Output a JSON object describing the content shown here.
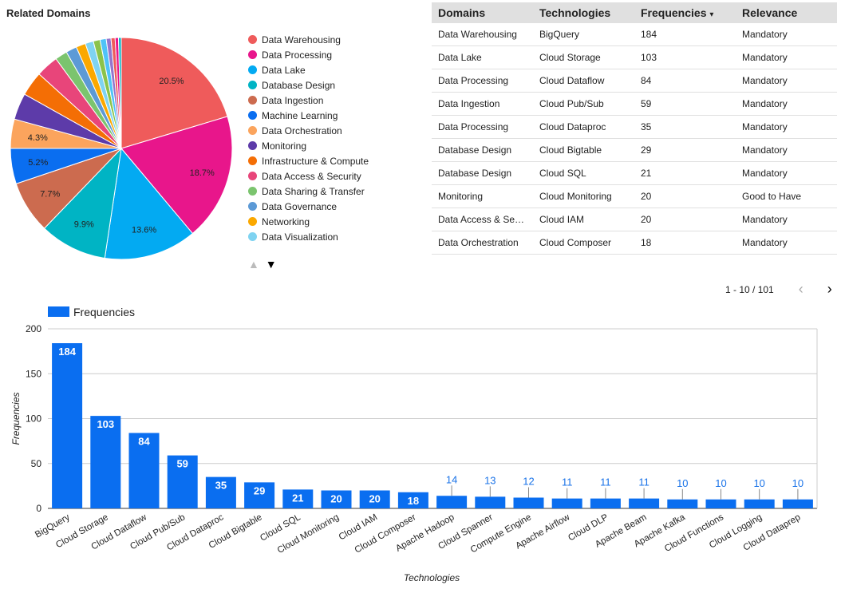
{
  "pie": {
    "title": "Related Domains",
    "chart_data": {
      "type": "pie",
      "slices": [
        {
          "label": "Data Warehousing",
          "value": 20.5,
          "color": "#ef5b5b",
          "show_label": true
        },
        {
          "label": "Data Processing",
          "value": 18.7,
          "color": "#e8168b",
          "show_label": true
        },
        {
          "label": "Data Lake",
          "value": 13.6,
          "color": "#03aaf2",
          "show_label": true
        },
        {
          "label": "Database Design",
          "value": 9.9,
          "color": "#00b4c4",
          "show_label": true
        },
        {
          "label": "Data Ingestion",
          "value": 7.7,
          "color": "#cc6b4f",
          "show_label": true
        },
        {
          "label": "Machine Learning",
          "value": 5.2,
          "color": "#0a6ef0",
          "show_label": true
        },
        {
          "label": "Data Orchestration",
          "value": 4.3,
          "color": "#fba45d",
          "show_label": true
        },
        {
          "label": "Monitoring",
          "value": 3.9,
          "color": "#5d3ba9",
          "show_label": false
        },
        {
          "label": "Infrastructure & Compute",
          "value": 3.6,
          "color": "#f46e05",
          "show_label": false
        },
        {
          "label": "Data Access & Security",
          "value": 3.3,
          "color": "#e8457a",
          "show_label": false
        },
        {
          "label": "Data Sharing & Transfer",
          "value": 1.8,
          "color": "#7bc46e",
          "show_label": false
        },
        {
          "label": "Data Governance",
          "value": 1.6,
          "color": "#5c9ad6",
          "show_label": false
        },
        {
          "label": "Networking",
          "value": 1.4,
          "color": "#fba800",
          "show_label": false
        },
        {
          "label": "Data Visualization",
          "value": 1.2,
          "color": "#7fd3f1",
          "show_label": false
        },
        {
          "label": "",
          "value": 1.0,
          "color": "#8bc34a",
          "show_label": false
        },
        {
          "label": "",
          "value": 0.9,
          "color": "#4fc3f7",
          "show_label": false
        },
        {
          "label": "",
          "value": 0.7,
          "color": "#9575cd",
          "show_label": false
        },
        {
          "label": "",
          "value": 0.6,
          "color": "#ef5b5b",
          "show_label": false
        },
        {
          "label": "",
          "value": 0.5,
          "color": "#e8168b",
          "show_label": false
        },
        {
          "label": "",
          "value": 0.4,
          "color": "#00b4c4",
          "show_label": false
        }
      ]
    },
    "legend_pager": {
      "up": "▲",
      "down": "▼"
    }
  },
  "table": {
    "headers": [
      "Domains",
      "Technologies",
      "Frequencies",
      "Relevance"
    ],
    "sort_indicator": "▾",
    "rows": [
      [
        "Data Warehousing",
        "BigQuery",
        "184",
        "Mandatory"
      ],
      [
        "Data Lake",
        "Cloud Storage",
        "103",
        "Mandatory"
      ],
      [
        "Data Processing",
        "Cloud Dataflow",
        "84",
        "Mandatory"
      ],
      [
        "Data Ingestion",
        "Cloud Pub/Sub",
        "59",
        "Mandatory"
      ],
      [
        "Data Processing",
        "Cloud Dataproc",
        "35",
        "Mandatory"
      ],
      [
        "Database Design",
        "Cloud Bigtable",
        "29",
        "Mandatory"
      ],
      [
        "Database Design",
        "Cloud SQL",
        "21",
        "Mandatory"
      ],
      [
        "Monitoring",
        "Cloud Monitoring",
        "20",
        "Good to Have"
      ],
      [
        "Data Access & Sec…",
        "Cloud IAM",
        "20",
        "Mandatory"
      ],
      [
        "Data Orchestration",
        "Cloud Composer",
        "18",
        "Mandatory"
      ]
    ],
    "pager": {
      "range": "1 - 10 / 101",
      "prev": "‹",
      "next": "›"
    }
  },
  "bar": {
    "chart_data": {
      "type": "bar",
      "legend": "Frequencies",
      "xlabel": "Technologies",
      "ylabel": "Frequencies",
      "ylim": [
        0,
        200
      ],
      "yticks": [
        0,
        50,
        100,
        150,
        200
      ],
      "color": "#0a6ef0",
      "categories": [
        "BigQuery",
        "Cloud Storage",
        "Cloud Dataflow",
        "Cloud Pub/Sub",
        "Cloud Dataproc",
        "Cloud Bigtable",
        "Cloud SQL",
        "Cloud Monitoring",
        "Cloud IAM",
        "Cloud Composer",
        "Apache Hadoop",
        "Cloud Spanner",
        "Compute Engine",
        "Apache Airflow",
        "Cloud DLP",
        "Apache Beam",
        "Apache Kafka",
        "Cloud Functions",
        "Cloud Logging",
        "Cloud Dataprep"
      ],
      "values": [
        184,
        103,
        84,
        59,
        35,
        29,
        21,
        20,
        20,
        18,
        14,
        13,
        12,
        11,
        11,
        11,
        10,
        10,
        10,
        10
      ]
    }
  }
}
